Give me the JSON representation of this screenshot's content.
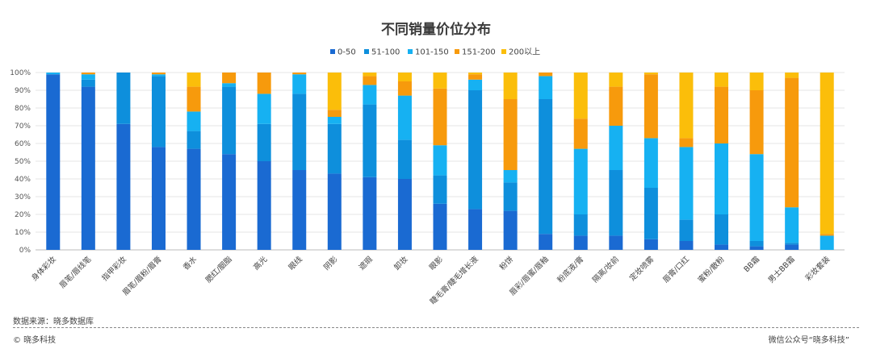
{
  "chart_data": {
    "type": "bar",
    "stacked": true,
    "title": "不同销量价位分布",
    "categories": [
      "身体彩妆",
      "唇笔/唇线笔",
      "指甲彩妆",
      "眉笔/眉粉/眉膏",
      "香水",
      "腮红/胭脂",
      "高光",
      "眼线",
      "阴影",
      "遮瑕",
      "卸妆",
      "眼影",
      "睫毛膏/睫毛增长液",
      "粉饼",
      "唇彩/唇蜜/唇釉",
      "粉底液/膏",
      "隔离/妆前",
      "定妆喷雾",
      "唇膏/口红",
      "蜜粉/散粉",
      "BB霜",
      "男士BB霜",
      "彩妆套装"
    ],
    "series": [
      {
        "name": "0-50",
        "color": "#1a6ad2",
        "values": [
          99,
          92,
          71,
          58,
          57,
          54,
          50,
          45,
          43,
          41,
          40,
          26,
          23,
          22,
          9,
          8,
          8,
          6,
          5,
          3,
          2,
          3,
          0
        ]
      },
      {
        "name": "51-100",
        "color": "#0e8fdc",
        "values": [
          0,
          4,
          29,
          40,
          10,
          38,
          21,
          43,
          28,
          41,
          22,
          16,
          67,
          16,
          76,
          12,
          37,
          29,
          12,
          17,
          3,
          1,
          0
        ]
      },
      {
        "name": "101-150",
        "color": "#16b1f2",
        "values": [
          1,
          3,
          0,
          1,
          11,
          2,
          17,
          11,
          4,
          11,
          25,
          17,
          6,
          7,
          13,
          37,
          25,
          28,
          41,
          40,
          49,
          20,
          8
        ]
      },
      {
        "name": "151-200",
        "color": "#f79a0c",
        "values": [
          0,
          1,
          0,
          1,
          14,
          6,
          12,
          1,
          4,
          5,
          8,
          32,
          3,
          40,
          2,
          17,
          22,
          36,
          5,
          32,
          36,
          73,
          1
        ]
      },
      {
        "name": "200以上",
        "color": "#fbbe0a",
        "values": [
          0,
          0,
          0,
          0,
          8,
          0,
          0,
          0,
          21,
          2,
          5,
          9,
          1,
          15,
          0,
          26,
          8,
          1,
          37,
          8,
          10,
          3,
          91
        ]
      }
    ],
    "ylim": [
      0,
      100
    ],
    "yticks": [
      "0%",
      "10%",
      "20%",
      "30%",
      "40%",
      "50%",
      "60%",
      "70%",
      "80%",
      "90%",
      "100%"
    ],
    "grid": true,
    "legend_position": "top-center"
  },
  "footer": {
    "source": "数据来源：晓多数据库",
    "copyright": "© 晓多科技",
    "wechat": "微信公众号“晓多科技”"
  }
}
